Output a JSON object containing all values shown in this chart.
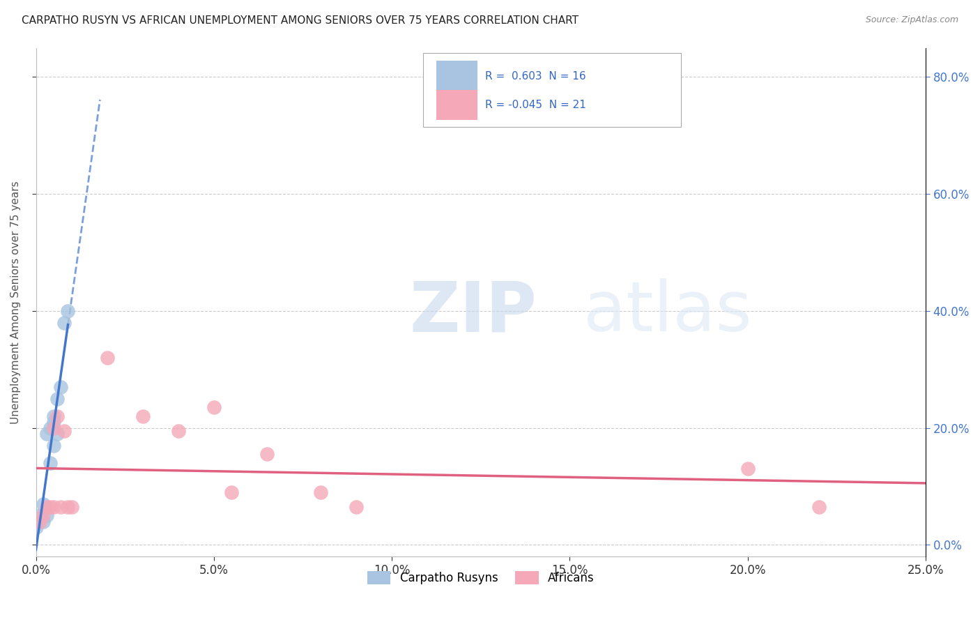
{
  "title": "CARPATHO RUSYN VS AFRICAN UNEMPLOYMENT AMONG SENIORS OVER 75 YEARS CORRELATION CHART",
  "source": "Source: ZipAtlas.com",
  "ylabel": "Unemployment Among Seniors over 75 years",
  "xlim": [
    0.0,
    0.25
  ],
  "ylim": [
    -0.02,
    0.85
  ],
  "xticks": [
    0.0,
    0.05,
    0.1,
    0.15,
    0.2,
    0.25
  ],
  "yticks": [
    0.0,
    0.2,
    0.4,
    0.6,
    0.8
  ],
  "grid_color": "#cccccc",
  "background_color": "#ffffff",
  "carpatho_color": "#a8c4e0",
  "african_color": "#f4a8b8",
  "carpatho_line_color": "#4477cc",
  "african_line_color": "#e06080",
  "carpatho_R": 0.603,
  "carpatho_N": 16,
  "african_R": -0.045,
  "african_N": 21,
  "carpatho_x": [
    0.0,
    0.001,
    0.002,
    0.002,
    0.003,
    0.003,
    0.004,
    0.004,
    0.005,
    0.005,
    0.005,
    0.006,
    0.006,
    0.007,
    0.008,
    0.009
  ],
  "carpatho_y": [
    0.03,
    0.05,
    0.04,
    0.07,
    0.05,
    0.19,
    0.14,
    0.2,
    0.17,
    0.21,
    0.22,
    0.19,
    0.25,
    0.27,
    0.38,
    0.4
  ],
  "african_x": [
    0.001,
    0.002,
    0.003,
    0.004,
    0.005,
    0.005,
    0.006,
    0.007,
    0.008,
    0.009,
    0.01,
    0.02,
    0.03,
    0.04,
    0.05,
    0.055,
    0.065,
    0.08,
    0.09,
    0.2,
    0.22
  ],
  "african_y": [
    0.04,
    0.05,
    0.065,
    0.065,
    0.2,
    0.065,
    0.22,
    0.065,
    0.195,
    0.065,
    0.065,
    0.32,
    0.22,
    0.195,
    0.235,
    0.09,
    0.155,
    0.09,
    0.065,
    0.13,
    0.065
  ],
  "watermark_zip": "ZIP",
  "watermark_atlas": "atlas",
  "legend_label_carpatho": "Carpatho Rusyns",
  "legend_label_african": "Africans"
}
